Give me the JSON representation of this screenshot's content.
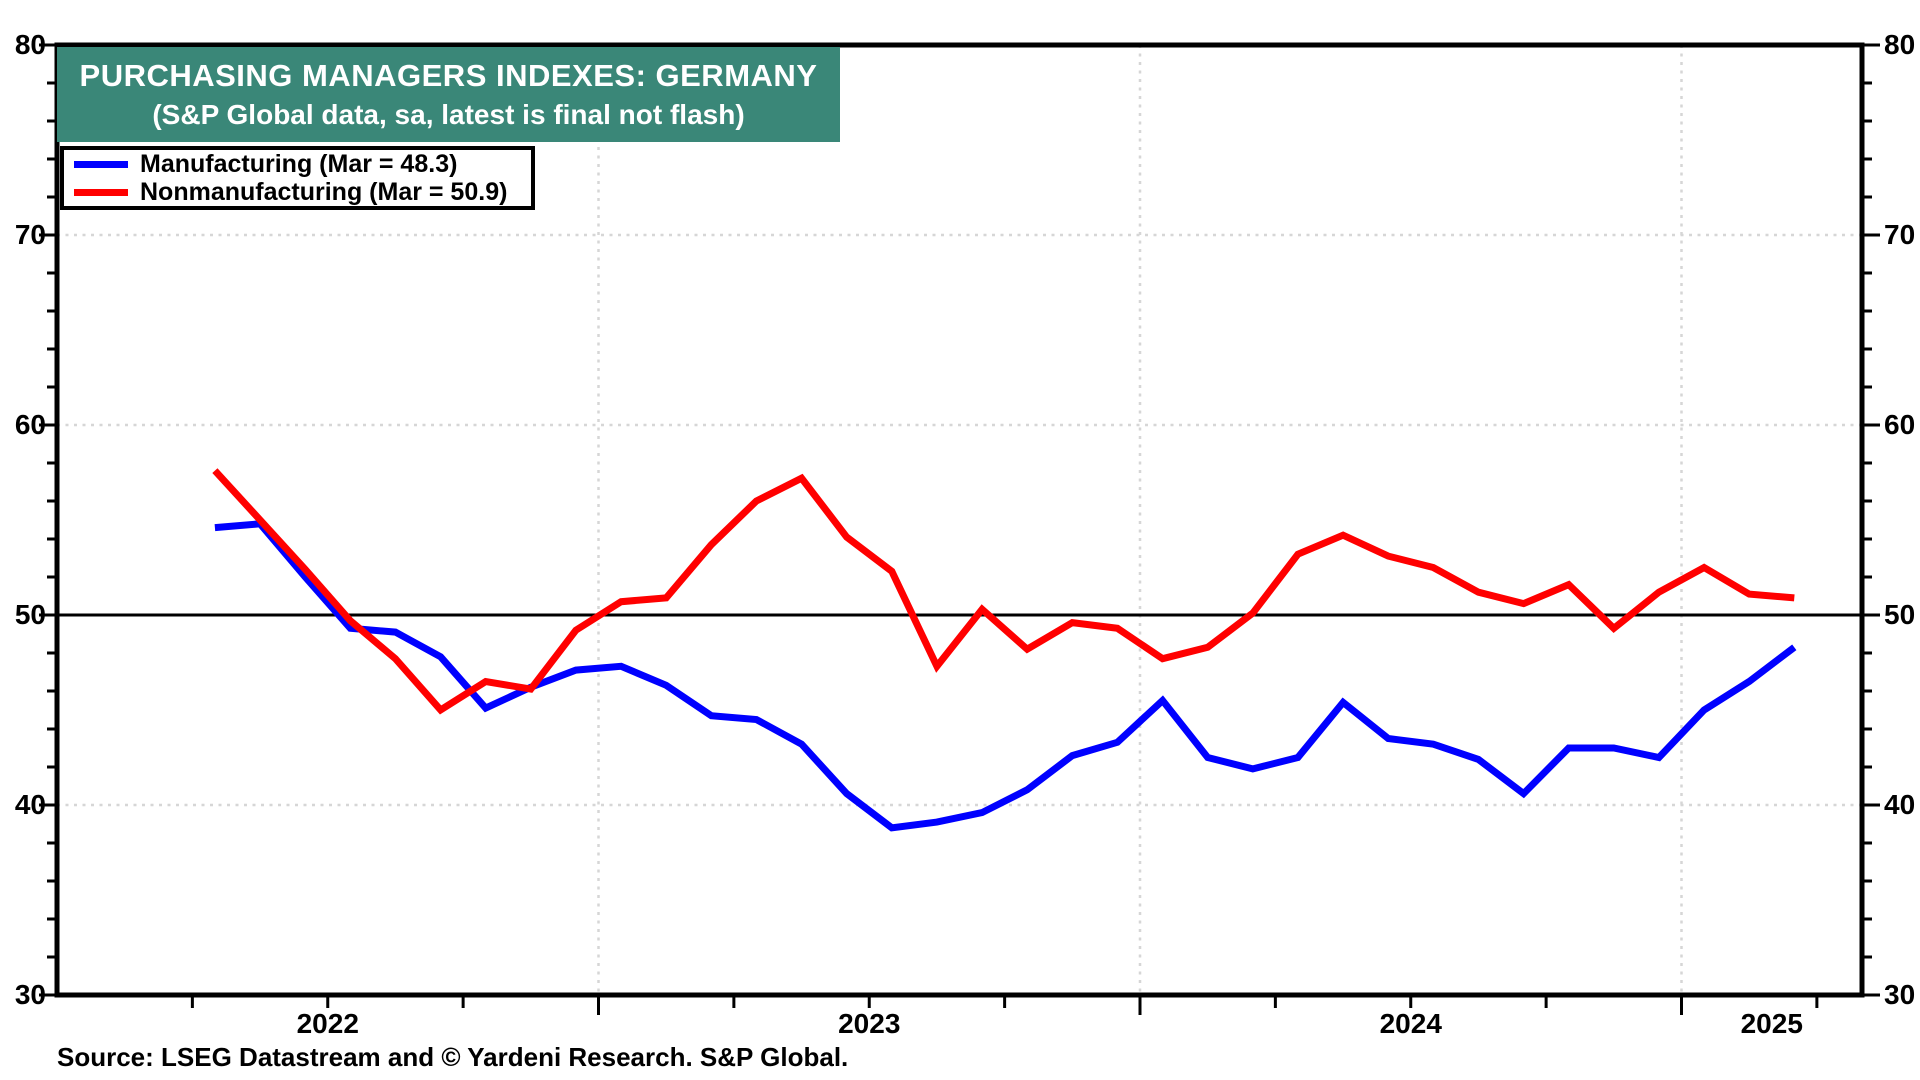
{
  "header": {
    "title": "PURCHASING MANAGERS INDEXES: GERMANY",
    "subtitle": "(S&P Global data, sa, latest is final not flash)",
    "bg_color": "#3A8778",
    "text_color": "#FFFFFF"
  },
  "legend": {
    "entries": [
      {
        "label": "Manufacturing (Mar = 48.3)",
        "color": "#0000FF"
      },
      {
        "label": "Nonmanufacturing (Mar = 50.9)",
        "color": "#FF0000"
      }
    ]
  },
  "source": "Source: LSEG Datastream and © Yardeni Research. S&P Global.",
  "chart_data": {
    "type": "line",
    "title": "Purchasing Managers Indexes: Germany",
    "x_axis_span_months": [
      "2022-01",
      "2025-05"
    ],
    "year_labels": [
      "2022",
      "2023",
      "2024",
      "2025"
    ],
    "ylim": [
      30,
      80
    ],
    "y_major_ticks": [
      30,
      40,
      50,
      60,
      70,
      80
    ],
    "y_minor_step": 2,
    "x_minor_tick_months": 3,
    "dotted_h_gridlines": [
      40,
      60,
      70
    ],
    "solid_h_line": 50,
    "dotted_v_gridlines": [
      "2023-01",
      "2024-01",
      "2025-01"
    ],
    "grid_color": "#D6D6D6",
    "months": [
      "2022-04",
      "2022-05",
      "2022-06",
      "2022-07",
      "2022-08",
      "2022-09",
      "2022-10",
      "2022-11",
      "2022-12",
      "2023-01",
      "2023-02",
      "2023-03",
      "2023-04",
      "2023-05",
      "2023-06",
      "2023-07",
      "2023-08",
      "2023-09",
      "2023-10",
      "2023-11",
      "2023-12",
      "2024-01",
      "2024-02",
      "2024-03",
      "2024-04",
      "2024-05",
      "2024-06",
      "2024-07",
      "2024-08",
      "2024-09",
      "2024-10",
      "2024-11",
      "2024-12",
      "2025-01",
      "2025-02",
      "2025-03"
    ],
    "series": [
      {
        "name": "Manufacturing",
        "color": "#0000FF",
        "latest_label": "Mar = 48.3",
        "values": [
          54.6,
          54.8,
          52.0,
          49.3,
          49.1,
          47.8,
          45.1,
          46.2,
          47.1,
          47.3,
          46.3,
          44.7,
          44.5,
          43.2,
          40.6,
          38.8,
          39.1,
          39.6,
          40.8,
          42.6,
          43.3,
          45.5,
          42.5,
          41.9,
          42.5,
          45.4,
          43.5,
          43.2,
          42.4,
          40.6,
          43.0,
          43.0,
          42.5,
          45.0,
          46.5,
          48.3
        ]
      },
      {
        "name": "Nonmanufacturing",
        "color": "#FF0000",
        "latest_label": "Mar = 50.9",
        "values": [
          57.6,
          55.0,
          52.4,
          49.7,
          47.7,
          45.0,
          46.5,
          46.1,
          49.2,
          50.7,
          50.9,
          53.7,
          56.0,
          57.2,
          54.1,
          52.3,
          47.3,
          50.3,
          48.2,
          49.6,
          49.3,
          47.7,
          48.3,
          50.1,
          53.2,
          54.2,
          53.1,
          52.5,
          51.2,
          50.6,
          51.6,
          49.3,
          51.2,
          52.5,
          51.1,
          50.9
        ]
      }
    ]
  }
}
